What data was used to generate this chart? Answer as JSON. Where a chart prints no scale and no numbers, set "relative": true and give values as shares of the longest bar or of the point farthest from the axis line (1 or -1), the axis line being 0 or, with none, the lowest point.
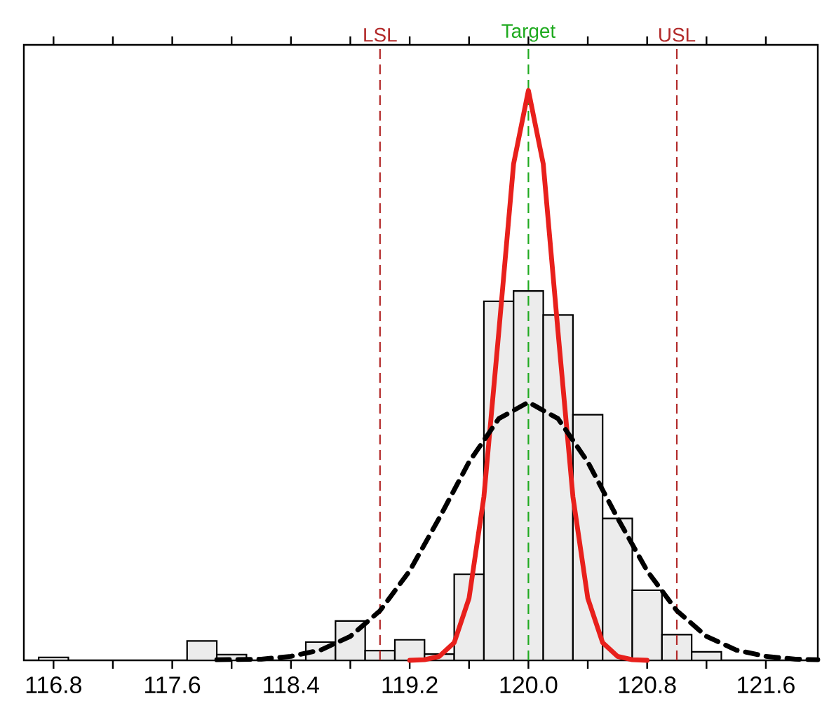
{
  "chart_data": {
    "type": "histogram",
    "relative": true,
    "color": "#ececec",
    "bins": [
      116.7,
      116.9,
      117.1,
      117.3,
      117.5,
      117.7,
      117.9,
      118.1,
      118.3,
      118.5,
      118.7,
      118.9,
      119.1,
      119.3,
      119.5,
      119.7,
      119.9,
      120.1,
      120.3,
      120.5,
      120.7,
      120.9,
      121.1,
      121.3
    ],
    "values": [
      0.005,
      0,
      0,
      0,
      0,
      0.034,
      0.01,
      0,
      0,
      0.032,
      0.069,
      0.017,
      0.036,
      0.011,
      0.151,
      0.63,
      0.648,
      0.606,
      0.431,
      0.249,
      0.123,
      0.045,
      0.015
    ],
    "series": [
      {
        "type": "line",
        "color": "#e8201c",
        "line_style": "solid",
        "x": [
          119.2,
          119.3,
          119.4,
          119.5,
          119.6,
          119.7,
          119.8,
          119.9,
          120.0,
          120.1,
          120.2,
          120.3,
          120.4,
          120.5,
          120.6,
          120.7,
          120.8
        ],
        "values": [
          0,
          0.001,
          0.007,
          0.031,
          0.109,
          0.287,
          0.575,
          0.871,
          1,
          0.871,
          0.575,
          0.287,
          0.109,
          0.031,
          0.007,
          0.001,
          0
        ]
      },
      {
        "type": "line",
        "color": "#000000",
        "line_style": "dashed",
        "x": [
          117.9,
          118.2,
          118.4,
          118.6,
          118.8,
          119.0,
          119.2,
          119.4,
          119.6,
          119.8,
          120.0,
          120.2,
          120.4,
          120.6,
          120.8,
          121.0,
          121.2,
          121.4,
          121.6,
          121.8,
          121.95
        ],
        "values": [
          0.001,
          0.002,
          0.007,
          0.018,
          0.042,
          0.087,
          0.157,
          0.25,
          0.348,
          0.424,
          0.453,
          0.424,
          0.348,
          0.25,
          0.157,
          0.087,
          0.042,
          0.018,
          0.007,
          0.002,
          0.001
        ]
      }
    ],
    "xlim": [
      116.6,
      121.95
    ],
    "xticks": [
      {
        "value": 116.8,
        "label": "116.8"
      },
      {
        "value": 117.2,
        "label": null
      },
      {
        "value": 117.6,
        "label": "117.6"
      },
      {
        "value": 118.0,
        "label": null
      },
      {
        "value": 118.4,
        "label": "118.4"
      },
      {
        "value": 118.8,
        "label": null
      },
      {
        "value": 119.2,
        "label": "119.2"
      },
      {
        "value": 119.6,
        "label": null
      },
      {
        "value": 120.0,
        "label": "120.0"
      },
      {
        "value": 120.4,
        "label": null
      },
      {
        "value": 120.8,
        "label": "120.8"
      },
      {
        "value": 121.2,
        "label": null
      },
      {
        "value": 121.6,
        "label": "121.6"
      }
    ],
    "ref_lines": [
      {
        "axis": "x",
        "value": 119.0,
        "label": "LSL",
        "color": "#b22a2a",
        "line_style": "dashed"
      },
      {
        "axis": "x",
        "value": 120.0,
        "label": "Target",
        "color": "#1faa1f",
        "line_style": "dashed"
      },
      {
        "axis": "x",
        "value": 121.0,
        "label": "USL",
        "color": "#b22a2a",
        "line_style": "dashed"
      }
    ]
  }
}
